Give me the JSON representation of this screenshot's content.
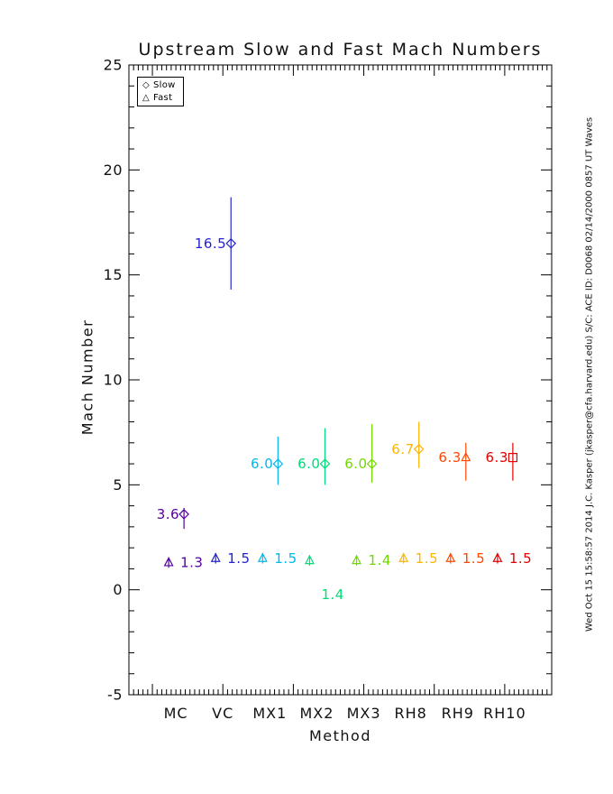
{
  "annotations": {
    "side_text": "Wed Oct 15 15:58:57 2014   J.C. Kasper (jkasper@cfa.harvard.edu)   S/C: ACE ID: D0068 02/14/2000  0857 UT Waves"
  },
  "chart_data": {
    "type": "scatter",
    "title": "Upstream Slow and Fast Mach Numbers",
    "xlabel": "Method",
    "ylabel": "Mach Number",
    "ylim": [
      -5,
      25
    ],
    "yticks": [
      "25",
      "20",
      "15",
      "10",
      "5",
      "0",
      "-5"
    ],
    "ytick_values": [
      25,
      20,
      15,
      10,
      5,
      0,
      -5
    ],
    "y_minor_interval": 1,
    "grid": "off",
    "legend_position": "top-left-inside",
    "legend": [
      {
        "glyph": "◇",
        "symbol": "diamond",
        "label": "Slow"
      },
      {
        "glyph": "△",
        "symbol": "triangle",
        "label": "Fast"
      }
    ],
    "categories": [
      "MC",
      "VC",
      "MX1",
      "MX2",
      "MX3",
      "RH8",
      "RH9",
      "RH10"
    ],
    "series": [
      {
        "name": "Slow",
        "label_side": "left",
        "x_offset": 9,
        "points": [
          {
            "category": "MC",
            "value": 3.6,
            "label": "3.6",
            "err": [
              2.9,
              3.9
            ],
            "color": "#55009E",
            "symbol": "diamond"
          },
          {
            "category": "VC",
            "value": 16.5,
            "label": "16.5",
            "err": [
              14.3,
              18.7
            ],
            "color": "#2424CE",
            "symbol": "diamond"
          },
          {
            "category": "MX1",
            "value": 6.0,
            "label": "6.0",
            "err": [
              5.0,
              7.3
            ],
            "color": "#00B8EE",
            "symbol": "diamond"
          },
          {
            "category": "MX2",
            "value": 6.0,
            "label": "6.0",
            "err": [
              5.0,
              7.7
            ],
            "color": "#00DC78",
            "symbol": "diamond"
          },
          {
            "category": "MX3",
            "value": 6.0,
            "label": "6.0",
            "err": [
              5.1,
              7.9
            ],
            "color": "#72D800",
            "symbol": "diamond"
          },
          {
            "category": "RH8",
            "value": 6.7,
            "label": "6.7",
            "err": [
              5.8,
              8.0
            ],
            "color": "#FFB400",
            "symbol": "diamond"
          },
          {
            "category": "RH9",
            "value": 6.3,
            "label": "6.3",
            "err": [
              5.2,
              7.0
            ],
            "color": "#FF4800",
            "symbol": "triangle"
          },
          {
            "category": "RH10",
            "value": 6.3,
            "label": "6.3",
            "err": [
              5.2,
              7.0
            ],
            "color": "#E60000",
            "symbol": "square"
          }
        ]
      },
      {
        "name": "Fast",
        "label_side": "right",
        "x_offset": -8,
        "points": [
          {
            "category": "MC",
            "value": 1.3,
            "label": "1.3",
            "err": [
              1.05,
              1.55
            ],
            "color": "#55009E",
            "symbol": "triangle"
          },
          {
            "category": "VC",
            "value": 1.5,
            "label": "1.5",
            "err": [
              1.25,
              1.75
            ],
            "color": "#2424CE",
            "symbol": "triangle"
          },
          {
            "category": "MX1",
            "value": 1.5,
            "label": "1.5",
            "err": [
              1.25,
              1.75
            ],
            "color": "#00B8EE",
            "symbol": "triangle"
          },
          {
            "category": "MX2",
            "value": 1.4,
            "label": "1.4",
            "err": [
              1.15,
              1.65
            ],
            "color": "#00DC78",
            "symbol": "triangle",
            "label_dy": 38
          },
          {
            "category": "MX3",
            "value": 1.4,
            "label": "1.4",
            "err": [
              1.15,
              1.65
            ],
            "color": "#72D800",
            "symbol": "triangle"
          },
          {
            "category": "RH8",
            "value": 1.5,
            "label": "1.5",
            "err": [
              1.25,
              1.75
            ],
            "color": "#FFB400",
            "symbol": "triangle"
          },
          {
            "category": "RH9",
            "value": 1.5,
            "label": "1.5",
            "err": [
              1.25,
              1.75
            ],
            "color": "#FF4800",
            "symbol": "triangle"
          },
          {
            "category": "RH10",
            "value": 1.5,
            "label": "1.5",
            "err": [
              1.25,
              1.75
            ],
            "color": "#E60000",
            "symbol": "triangle"
          }
        ]
      }
    ]
  }
}
